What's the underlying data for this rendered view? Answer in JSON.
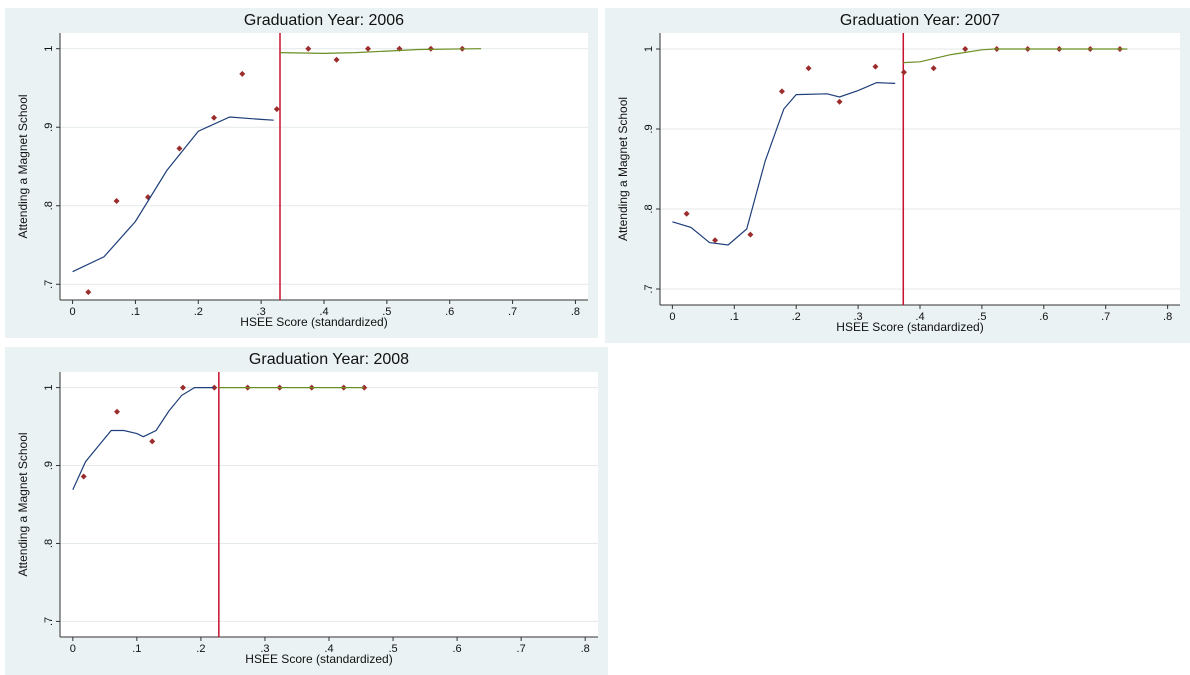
{
  "chart_data": [
    {
      "type": "scatter",
      "title": "Graduation Year: 2006",
      "x_label": "HSEE Score (standardized)",
      "y_label": "Attending a Magnet School",
      "xlim": [
        -0.02,
        0.82
      ],
      "ylim": [
        0.68,
        1.02
      ],
      "xticks": [
        0,
        {
          "value": 0.1,
          "label": ".1"
        },
        {
          "value": 0.2,
          "label": ".2"
        },
        {
          "value": 0.3,
          "label": ".3"
        },
        {
          "value": 0.4,
          "label": ".4"
        },
        {
          "value": 0.5,
          "label": ".5"
        },
        {
          "value": 0.6,
          "label": ".6"
        },
        {
          "value": 0.7,
          "label": ".7"
        },
        {
          "value": 0.8,
          "label": ".8"
        }
      ],
      "yticks": [
        {
          "value": 0.7,
          "label": ".7"
        },
        {
          "value": 0.8,
          "label": ".8"
        },
        {
          "value": 0.9,
          "label": ".9"
        },
        1
      ],
      "grid": true,
      "cutoff": 0.33,
      "cutoff_color": "#c8102e",
      "series": [
        {
          "style": "markers",
          "color": "#9b2d2d",
          "x": [
            0.025,
            0.07,
            0.12,
            0.17,
            0.225,
            0.27,
            0.325,
            0.375,
            0.42,
            0.47,
            0.52,
            0.57,
            0.62
          ],
          "values": [
            0.69,
            0.806,
            0.811,
            0.873,
            0.912,
            0.968,
            0.923,
            1,
            0.986,
            1,
            1,
            1,
            1
          ]
        },
        {
          "style": "line",
          "color": "#1f3f7a",
          "x": [
            0,
            0.05,
            0.1,
            0.15,
            0.2,
            0.25,
            0.3,
            0.32
          ],
          "values": [
            0.716,
            0.735,
            0.78,
            0.845,
            0.895,
            0.913,
            0.91,
            0.909
          ]
        },
        {
          "style": "line",
          "color": "#6b8e23",
          "x": [
            0.33,
            0.4,
            0.45,
            0.5,
            0.55,
            0.65
          ],
          "values": [
            0.995,
            0.994,
            0.995,
            0.997,
            0.999,
            1
          ]
        }
      ]
    },
    {
      "type": "scatter",
      "title": "Graduation Year: 2007",
      "x_label": "HSEE Score (standardized)",
      "y_label": "Attending a Magnet School",
      "xlim": [
        -0.02,
        0.82
      ],
      "ylim": [
        0.68,
        1.02
      ],
      "xticks": [
        0,
        {
          "value": 0.1,
          "label": ".1"
        },
        {
          "value": 0.2,
          "label": ".2"
        },
        {
          "value": 0.3,
          "label": ".3"
        },
        {
          "value": 0.4,
          "label": ".4"
        },
        {
          "value": 0.5,
          "label": ".5"
        },
        {
          "value": 0.6,
          "label": ".6"
        },
        {
          "value": 0.7,
          "label": ".7"
        },
        {
          "value": 0.8,
          "label": ".8"
        }
      ],
      "yticks": [
        {
          "value": 0.7,
          "label": ".7"
        },
        {
          "value": 0.8,
          "label": ".8"
        },
        {
          "value": 0.9,
          "label": ".9"
        },
        1
      ],
      "grid": true,
      "cutoff": 0.373,
      "cutoff_color": "#c8102e",
      "series": [
        {
          "style": "markers",
          "color": "#9b2d2d",
          "x": [
            0.023,
            0.069,
            0.126,
            0.177,
            0.22,
            0.27,
            0.328,
            0.374,
            0.422,
            0.473,
            0.524,
            0.574,
            0.625,
            0.675,
            0.723
          ],
          "values": [
            0.794,
            0.761,
            0.768,
            0.947,
            0.976,
            0.934,
            0.978,
            0.971,
            0.976,
            1,
            1,
            1,
            1,
            1,
            1
          ]
        },
        {
          "style": "line",
          "color": "#1f3f7a",
          "x": [
            0,
            0.03,
            0.06,
            0.09,
            0.12,
            0.15,
            0.18,
            0.2,
            0.25,
            0.27,
            0.3,
            0.33,
            0.36
          ],
          "values": [
            0.784,
            0.777,
            0.758,
            0.755,
            0.775,
            0.86,
            0.925,
            0.943,
            0.944,
            0.94,
            0.948,
            0.958,
            0.957
          ]
        },
        {
          "style": "line",
          "color": "#6b8e23",
          "x": [
            0.373,
            0.4,
            0.45,
            0.5,
            0.52,
            0.6,
            0.735
          ],
          "values": [
            0.983,
            0.984,
            0.993,
            0.999,
            1,
            1,
            1
          ]
        }
      ]
    },
    {
      "type": "scatter",
      "title": "Graduation Year: 2008",
      "x_label": "HSEE Score (standardized)",
      "y_label": "Attending a Magnet School",
      "xlim": [
        -0.02,
        0.82
      ],
      "ylim": [
        0.68,
        1.02
      ],
      "xticks": [
        0,
        {
          "value": 0.1,
          "label": ".1"
        },
        {
          "value": 0.2,
          "label": ".2"
        },
        {
          "value": 0.3,
          "label": ".3"
        },
        {
          "value": 0.4,
          "label": ".4"
        },
        {
          "value": 0.5,
          "label": ".5"
        },
        {
          "value": 0.6,
          "label": ".6"
        },
        {
          "value": 0.7,
          "label": ".7"
        },
        {
          "value": 0.8,
          "label": ".8"
        }
      ],
      "yticks": [
        {
          "value": 0.7,
          "label": ".7"
        },
        {
          "value": 0.8,
          "label": ".8"
        },
        {
          "value": 0.9,
          "label": ".9"
        },
        1
      ],
      "grid": true,
      "cutoff": 0.228,
      "cutoff_color": "#c8102e",
      "series": [
        {
          "style": "markers",
          "color": "#9b2d2d",
          "x": [
            0.017,
            0.069,
            0.124,
            0.172,
            0.221,
            0.273,
            0.323,
            0.373,
            0.423,
            0.455
          ],
          "values": [
            0.886,
            0.969,
            0.931,
            1,
            1,
            1,
            1,
            1,
            1,
            1
          ]
        },
        {
          "style": "line",
          "color": "#1f3f7a",
          "x": [
            0,
            0.02,
            0.04,
            0.06,
            0.08,
            0.1,
            0.11,
            0.13,
            0.15,
            0.17,
            0.19,
            0.22
          ],
          "values": [
            0.869,
            0.905,
            0.925,
            0.945,
            0.945,
            0.941,
            0.937,
            0.945,
            0.97,
            0.99,
            1,
            1
          ]
        },
        {
          "style": "line",
          "color": "#6b8e23",
          "x": [
            0.228,
            0.3,
            0.4,
            0.455
          ],
          "values": [
            1,
            1,
            1,
            1
          ]
        }
      ]
    }
  ]
}
